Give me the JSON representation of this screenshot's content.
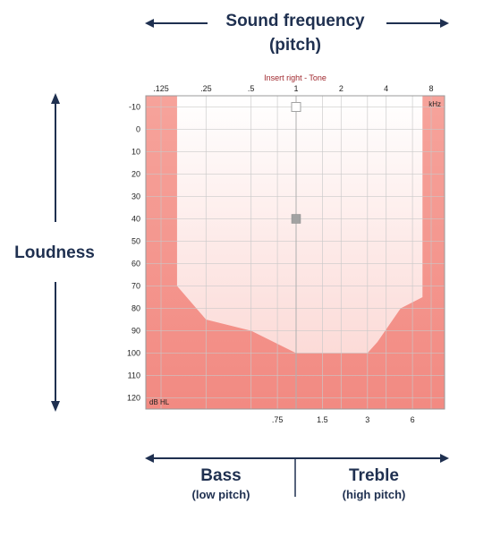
{
  "header": {
    "title_line1": "Sound frequency",
    "title_line2": "(pitch)"
  },
  "side": {
    "label": "Loudness"
  },
  "footer": {
    "bass_label": "Bass",
    "bass_sub": "(low pitch)",
    "treble_label": "Treble",
    "treble_sub": "(high pitch)"
  },
  "colors": {
    "navy": "#1f3050",
    "area_fill": "#f4958d",
    "area_light": "#fde3e1",
    "grid": "#c9c9c9",
    "chart_title": "#a0282e",
    "marker": "#a2a2a2"
  },
  "chart_data": {
    "type": "area",
    "title": "Insert right - Tone",
    "x_unit": "kHz",
    "y_unit": "dB HL",
    "x_scale": "log2",
    "y_inverted": true,
    "xlim_octaves": [
      0.125,
      8
    ],
    "ylim": [
      -15,
      125
    ],
    "x_top_ticks": [
      {
        "value": 0.125,
        "label": ".125"
      },
      {
        "value": 0.25,
        "label": ".25"
      },
      {
        "value": 0.5,
        "label": ".5"
      },
      {
        "value": 1,
        "label": "1"
      },
      {
        "value": 2,
        "label": "2"
      },
      {
        "value": 4,
        "label": "4"
      },
      {
        "value": 8,
        "label": "8"
      }
    ],
    "x_bottom_ticks": [
      {
        "value": 0.75,
        "label": ".75"
      },
      {
        "value": 1.5,
        "label": "1.5"
      },
      {
        "value": 3,
        "label": "3"
      },
      {
        "value": 6,
        "label": "6"
      }
    ],
    "y_ticks": [
      -10,
      0,
      10,
      20,
      30,
      40,
      50,
      60,
      70,
      80,
      90,
      100,
      110,
      120
    ],
    "threshold_curve": [
      {
        "x": 0.125,
        "y": -15
      },
      {
        "x": 0.16,
        "y": -15
      },
      {
        "x": 0.16,
        "y": 70
      },
      {
        "x": 0.25,
        "y": 85
      },
      {
        "x": 0.5,
        "y": 90
      },
      {
        "x": 1,
        "y": 100
      },
      {
        "x": 3,
        "y": 100
      },
      {
        "x": 3.5,
        "y": 95
      },
      {
        "x": 5,
        "y": 80
      },
      {
        "x": 7,
        "y": 75
      },
      {
        "x": 7,
        "y": -15
      },
      {
        "x": 8,
        "y": -15
      }
    ],
    "markers": [
      {
        "x": 1,
        "y": -10,
        "style": "hollow-square"
      },
      {
        "x": 1,
        "y": 40,
        "style": "filled-square"
      }
    ],
    "grid": true
  }
}
